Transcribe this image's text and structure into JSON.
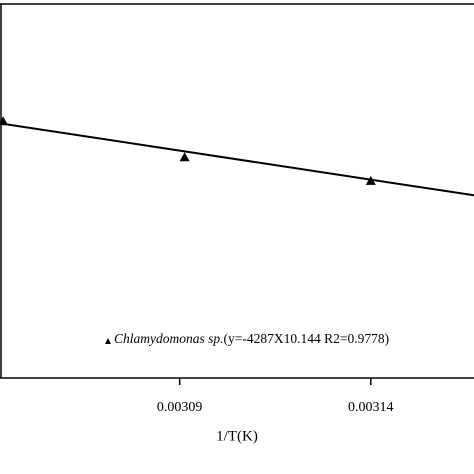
{
  "chart_data": {
    "type": "scatter",
    "x_label": "1/T(K)",
    "xlim": [
      0.003043,
      0.003167
    ],
    "ylim": [
      -4.79,
      -2.02
    ],
    "xticks": [
      0.00309,
      0.00314
    ],
    "series": [
      {
        "name": "Chlamydomonas sp.",
        "color": "#000000",
        "x": [
          0.0030438,
          0.0030913,
          0.00314
        ],
        "values": [
          -2.888,
          -3.155,
          -3.33
        ]
      }
    ],
    "fit": {
      "x": [
        0.003043,
        0.003167
      ],
      "values": [
        -2.904,
        -3.437
      ]
    },
    "annotation": "(y=-4287X10.144 R2=0.9778)"
  }
}
